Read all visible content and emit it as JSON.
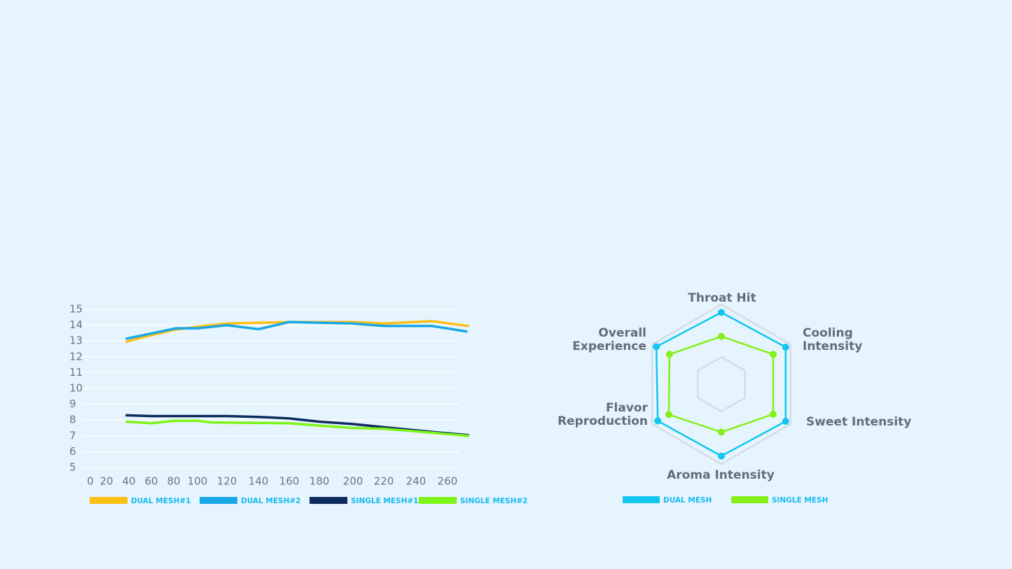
{
  "chart_data": [
    {
      "type": "line",
      "x_ticks": [
        "0",
        "20",
        "40",
        "60",
        "80",
        "100",
        "120",
        "140",
        "160",
        "180",
        "200",
        "220",
        "240",
        "260"
      ],
      "y_ticks": [
        "5",
        "6",
        "7",
        "8",
        "9",
        "10",
        "11",
        "12",
        "13",
        "14",
        "15"
      ],
      "ylim": [
        5,
        15
      ],
      "grid": true,
      "legend_position": "bottom",
      "series": [
        {
          "name": "DUAL MESH#1",
          "color": "#fbbf16",
          "points": [
            [
              38,
              12.95
            ],
            [
              50,
              13.2
            ],
            [
              80,
              13.7
            ],
            [
              100,
              13.9
            ],
            [
              120,
              14.1
            ],
            [
              160,
              14.2
            ],
            [
              200,
              14.2
            ],
            [
              220,
              14.1
            ],
            [
              250,
              14.25
            ],
            [
              273,
              13.95
            ]
          ]
        },
        {
          "name": "DUAL MESH#2",
          "color": "#1aa7e6",
          "points": [
            [
              38,
              13.15
            ],
            [
              82,
              13.8
            ],
            [
              100,
              13.8
            ],
            [
              120,
              14.0
            ],
            [
              140,
              13.75
            ],
            [
              160,
              14.2
            ],
            [
              200,
              14.1
            ],
            [
              220,
              13.95
            ],
            [
              250,
              13.95
            ],
            [
              272,
              13.6
            ]
          ]
        },
        {
          "name": "SINGLE MESH#1",
          "color": "#0d2b5e",
          "points": [
            [
              38,
              8.3
            ],
            [
              60,
              8.25
            ],
            [
              120,
              8.25
            ],
            [
              140,
              8.2
            ],
            [
              160,
              8.1
            ],
            [
              180,
              7.9
            ],
            [
              200,
              7.75
            ],
            [
              220,
              7.55
            ],
            [
              250,
              7.25
            ],
            [
              273,
              7.05
            ]
          ]
        },
        {
          "name": "SINGLE MESH#2",
          "color": "#7ff419",
          "points": [
            [
              38,
              7.9
            ],
            [
              60,
              7.8
            ],
            [
              80,
              7.95
            ],
            [
              100,
              7.95
            ],
            [
              110,
              7.85
            ],
            [
              160,
              7.8
            ],
            [
              180,
              7.65
            ],
            [
              200,
              7.5
            ],
            [
              220,
              7.45
            ],
            [
              250,
              7.2
            ],
            [
              273,
              7.0
            ]
          ]
        }
      ]
    },
    {
      "type": "radar",
      "axes": [
        "Throat Hit",
        "Cooling Intensity",
        "Sweet Intensity",
        "Aroma Intensity",
        "Flavor Reproduction",
        "Overall Experience"
      ],
      "axis_labels": [
        [
          "Throat Hit"
        ],
        [
          "Cooling",
          "Intensity"
        ],
        [
          "Sweet Intensity"
        ],
        [
          "Aroma Intensity"
        ],
        [
          "Flavor",
          "Reproduction"
        ],
        [
          "Overall",
          "Experience"
        ]
      ],
      "max": 10,
      "legend_position": "bottom",
      "series": [
        {
          "name": "DUAL MESH",
          "color": "#12c6ee",
          "values": [
            9.0,
            9.3,
            9.3,
            9.0,
            9.2,
            9.4
          ]
        },
        {
          "name": "SINGLE MESH",
          "color": "#84ef19",
          "values": [
            6.0,
            7.5,
            7.5,
            6.0,
            7.6,
            7.5
          ]
        }
      ]
    }
  ]
}
